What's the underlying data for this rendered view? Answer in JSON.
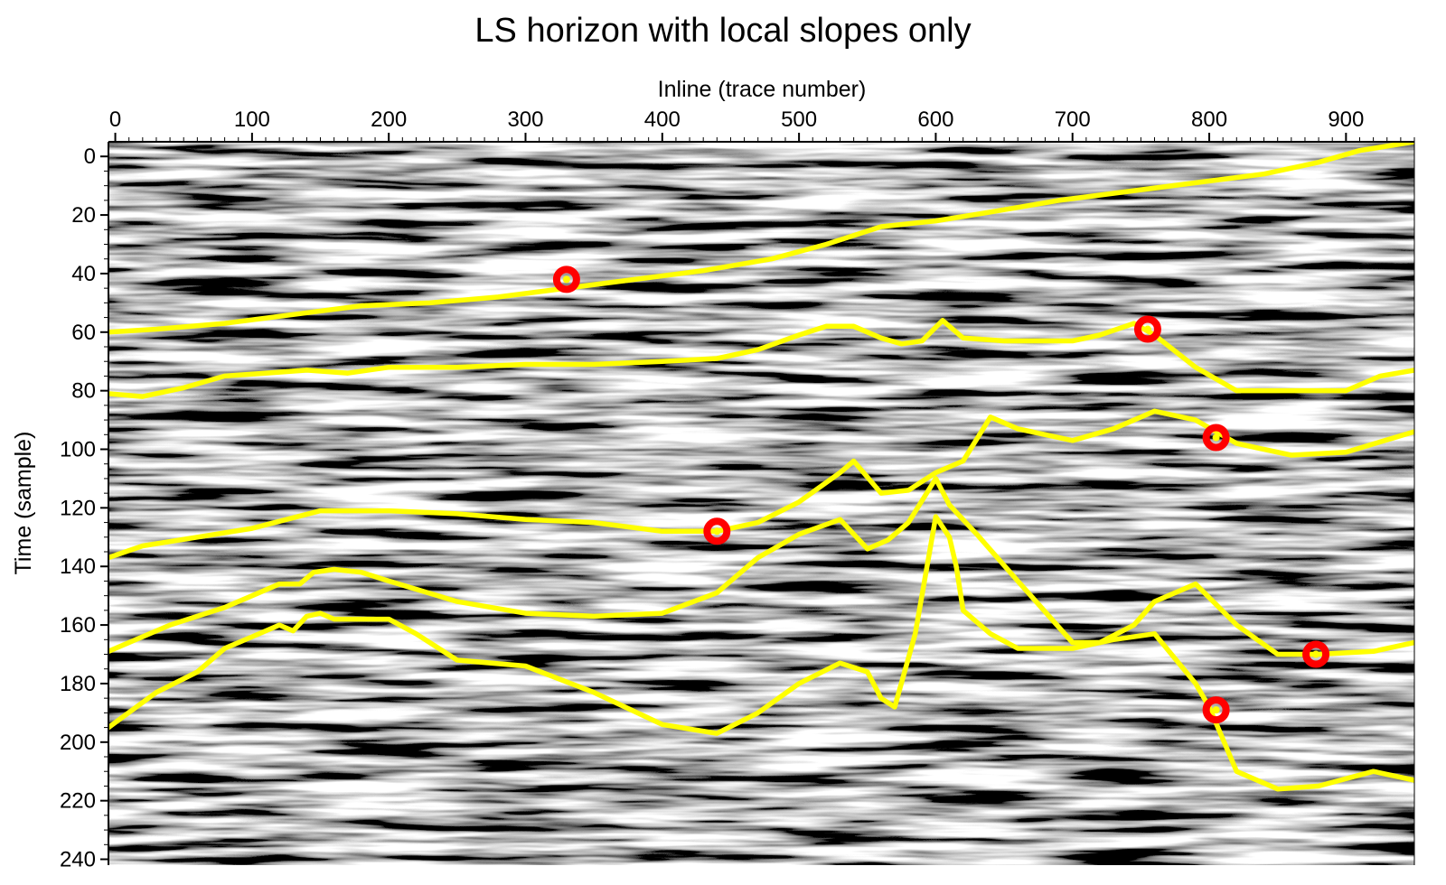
{
  "chart_data": {
    "type": "seismic-section-with-horizons",
    "title": "LS horizon with local slopes only",
    "xlabel": "Inline (trace number)",
    "ylabel": "Time (sample)",
    "x_axis_position": "top",
    "y_axis_inverted": true,
    "xlim": [
      -5,
      950
    ],
    "ylim": [
      -5,
      242
    ],
    "xticks": [
      0,
      100,
      200,
      300,
      400,
      500,
      600,
      700,
      800,
      900
    ],
    "yticks": [
      0,
      20,
      40,
      60,
      80,
      100,
      120,
      140,
      160,
      180,
      200,
      220,
      240
    ],
    "grid": false,
    "background": "grayscale seismic amplitude image",
    "colors": {
      "horizon": "#ffff00",
      "control_point_ring": "#ff0000",
      "control_point_center": "#ffff00"
    },
    "series": [
      {
        "x": [
          -5,
          30,
          80,
          130,
          180,
          230,
          280,
          330,
          380,
          430,
          480,
          520,
          560,
          600,
          640,
          690,
          740,
          790,
          840,
          880,
          910,
          950
        ],
        "y": [
          60,
          59,
          57,
          54,
          51,
          50,
          48,
          45,
          42,
          39,
          35,
          30,
          24,
          22,
          19,
          15,
          12,
          9,
          6,
          2,
          -2,
          -5
        ]
      },
      {
        "x": [
          -5,
          20,
          50,
          80,
          110,
          140,
          170,
          200,
          250,
          300,
          350,
          400,
          440,
          470,
          500,
          520,
          540,
          560,
          575,
          590,
          605,
          620,
          650,
          700,
          720,
          745,
          760,
          790,
          820,
          860,
          900,
          925,
          950
        ],
        "y": [
          81,
          82,
          79,
          75,
          74,
          73,
          74,
          72,
          72,
          71,
          71,
          70,
          69,
          66,
          61,
          58,
          58,
          62,
          64,
          63,
          56,
          62,
          63,
          63,
          61,
          57,
          61,
          72,
          80,
          80,
          80,
          75,
          73
        ]
      },
      {
        "x": [
          -5,
          20,
          60,
          100,
          150,
          200,
          250,
          300,
          350,
          400,
          440,
          470,
          500,
          530,
          540,
          560,
          580,
          600,
          620,
          640,
          660,
          700,
          730,
          760,
          790,
          820,
          860,
          900,
          950
        ],
        "y": [
          137,
          133,
          130,
          127,
          121,
          121,
          122,
          124,
          125,
          128,
          128,
          125,
          118,
          108,
          104,
          115,
          114,
          108,
          104,
          89,
          93,
          97,
          93,
          87,
          90,
          98,
          102,
          101,
          94
        ]
      },
      {
        "x": [
          -5,
          40,
          80,
          100,
          120,
          135,
          145,
          160,
          180,
          200,
          250,
          300,
          350,
          400,
          440,
          470,
          500,
          530,
          550,
          565,
          580,
          600,
          610,
          630,
          660,
          700,
          720,
          745,
          760,
          790,
          820,
          850,
          880,
          920,
          950
        ],
        "y": [
          169,
          160,
          154,
          150,
          146,
          146,
          142,
          141,
          142,
          145,
          152,
          156,
          157,
          156,
          149,
          137,
          129,
          124,
          134,
          131,
          125,
          110,
          119,
          129,
          145,
          166,
          166,
          160,
          152,
          146,
          160,
          170,
          170,
          169,
          166
        ]
      },
      {
        "x": [
          -5,
          30,
          60,
          80,
          100,
          120,
          130,
          140,
          150,
          160,
          180,
          200,
          220,
          250,
          300,
          350,
          400,
          440,
          470,
          500,
          530,
          550,
          560,
          570,
          585,
          600,
          610,
          615,
          620,
          640,
          660,
          700,
          730,
          760,
          790,
          800,
          820,
          850,
          880,
          920,
          950
        ],
        "y": [
          195,
          183,
          176,
          168,
          164,
          160,
          162,
          157,
          156,
          158,
          158,
          158,
          163,
          172,
          174,
          183,
          194,
          197,
          190,
          180,
          173,
          176,
          185,
          188,
          163,
          123,
          130,
          140,
          155,
          163,
          168,
          168,
          165,
          163,
          180,
          188,
          210,
          216,
          215,
          210,
          213
        ]
      }
    ],
    "control_points": [
      {
        "x": 330,
        "y": 42
      },
      {
        "x": 755,
        "y": 59
      },
      {
        "x": 805,
        "y": 96
      },
      {
        "x": 440,
        "y": 128
      },
      {
        "x": 878,
        "y": 170
      },
      {
        "x": 805,
        "y": 189
      }
    ]
  }
}
